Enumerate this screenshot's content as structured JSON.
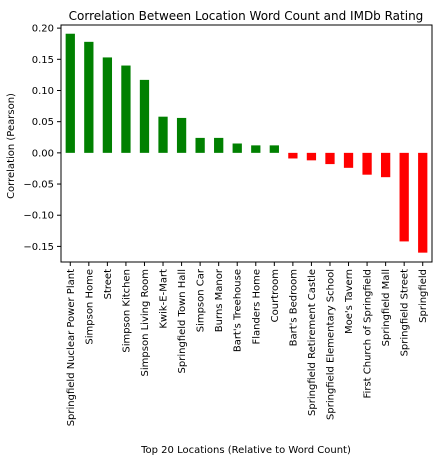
{
  "chart_data": {
    "type": "bar",
    "title": "Correlation Between Location Word Count and IMDb Rating",
    "xlabel": "Top 20 Locations (Relative to Word Count)",
    "ylabel": "Correlation (Pearson)",
    "ylim": [
      -0.175,
      0.205
    ],
    "yticks": [
      -0.15,
      -0.1,
      -0.05,
      0.0,
      0.05,
      0.1,
      0.15,
      0.2
    ],
    "ytick_labels": [
      "−0.15",
      "−0.10",
      "−0.05",
      "0.00",
      "0.05",
      "0.10",
      "0.15",
      "0.20"
    ],
    "grid": false,
    "positive_color": "#008000",
    "negative_color": "#ff0000",
    "categories": [
      "Springfield Nuclear Power Plant",
      "Simpson Home",
      "Street",
      "Simpson Kitchen",
      "Simpson Living Room",
      "Kwik-E-Mart",
      "Springfield Town Hall",
      "Simpson Car",
      "Burns Manor",
      "Bart's Treehouse",
      "Flanders Home",
      "Courtroom",
      "Bart's Bedroom",
      "Springfield Retirement Castle",
      "Springfield Elementary School",
      "Moe's Tavern",
      "First Church of Springfield",
      "Springfield Mall",
      "Springfield Street",
      "Springfield"
    ],
    "values": [
      0.191,
      0.178,
      0.153,
      0.14,
      0.117,
      0.058,
      0.056,
      0.024,
      0.024,
      0.015,
      0.012,
      0.012,
      -0.009,
      -0.012,
      -0.018,
      -0.024,
      -0.035,
      -0.039,
      -0.142,
      -0.16
    ]
  }
}
